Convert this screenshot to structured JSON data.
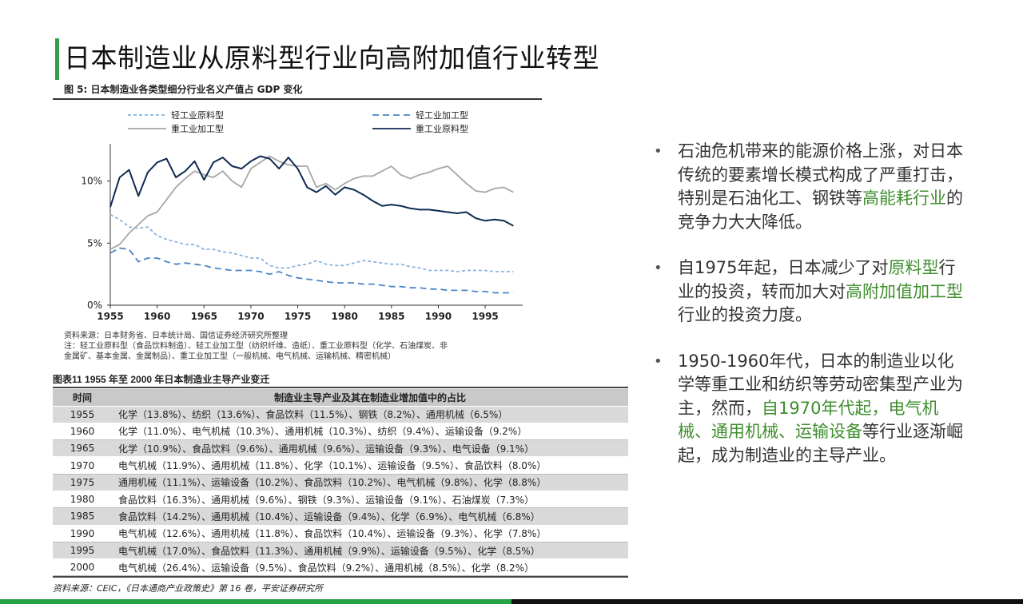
{
  "slide": {
    "title": "日本制造业从原料型行业向高附加值行业转型"
  },
  "figure": {
    "caption": "图 5:  日本制造业各类型细分行业名义产值占 GDP 变化",
    "notes": [
      "资料来源：日本财务省、日本统计局、国信证券经济研究所整理",
      "注：轻工业原料型（食品饮料制造）、轻工业加工型（纺织纤维、造纸）、重工业原料型（化学、石油煤炭、非",
      "金属矿、基本金属、金属制品）、重工业加工型（一般机械、电气机械、运输机械、精密机械）"
    ]
  },
  "chart_data": {
    "type": "line",
    "x": [
      1955,
      1956,
      1957,
      1958,
      1959,
      1960,
      1961,
      1962,
      1963,
      1964,
      1965,
      1966,
      1967,
      1968,
      1969,
      1970,
      1971,
      1972,
      1973,
      1974,
      1975,
      1976,
      1977,
      1978,
      1979,
      1980,
      1981,
      1982,
      1983,
      1984,
      1985,
      1986,
      1987,
      1988,
      1989,
      1990,
      1991,
      1992,
      1993,
      1994,
      1995,
      1996,
      1997,
      1998
    ],
    "xticks": [
      1955,
      1960,
      1965,
      1970,
      1975,
      1980,
      1985,
      1990,
      1995
    ],
    "yticks": [
      "0%",
      "5%",
      "10%"
    ],
    "ylim": [
      0,
      13
    ],
    "series": [
      {
        "name": "轻工业原料型",
        "color": "#8ab4dd",
        "dash": "4,3",
        "values": [
          7.3,
          6.9,
          6.3,
          6.2,
          6.3,
          5.6,
          5.3,
          5.1,
          4.9,
          4.9,
          4.5,
          4.5,
          4.3,
          4.2,
          4.0,
          3.8,
          3.8,
          3.2,
          3.0,
          3.0,
          3.2,
          3.3,
          3.6,
          3.3,
          3.2,
          3.2,
          3.4,
          3.6,
          3.5,
          3.4,
          3.3,
          3.3,
          3.1,
          3.0,
          2.8,
          2.8,
          2.8,
          2.7,
          2.8,
          2.8,
          2.8,
          2.7,
          2.7,
          2.7
        ]
      },
      {
        "name": "轻工业加工型",
        "color": "#4a86c5",
        "dash": "8,5",
        "values": [
          4.2,
          4.6,
          4.5,
          3.5,
          3.8,
          3.8,
          3.5,
          3.3,
          3.4,
          3.3,
          3.2,
          3.0,
          2.9,
          2.8,
          2.8,
          2.8,
          2.7,
          2.5,
          2.7,
          2.4,
          2.2,
          2.1,
          2.0,
          1.9,
          1.8,
          1.8,
          1.8,
          1.7,
          1.7,
          1.6,
          1.5,
          1.5,
          1.4,
          1.4,
          1.3,
          1.3,
          1.2,
          1.2,
          1.2,
          1.1,
          1.1,
          1.0,
          1.0,
          1.0
        ]
      },
      {
        "name": "重工业加工型",
        "color": "#a6a6a6",
        "dash": "",
        "values": [
          4.5,
          4.9,
          5.8,
          6.5,
          7.2,
          7.5,
          8.5,
          9.5,
          10.2,
          10.8,
          10.5,
          10.3,
          10.8,
          10.0,
          9.5,
          11.0,
          11.5,
          12.0,
          11.6,
          11.3,
          11.2,
          11.2,
          9.5,
          9.8,
          9.3,
          9.8,
          10.2,
          10.4,
          10.4,
          10.8,
          11.2,
          10.5,
          10.2,
          10.5,
          10.7,
          11.0,
          11.2,
          10.5,
          9.8,
          9.2,
          9.1,
          9.4,
          9.5,
          9.1
        ]
      },
      {
        "name": "重工业原料型",
        "color": "#0f2a52",
        "dash": "",
        "values": [
          7.9,
          10.3,
          10.9,
          8.8,
          10.7,
          11.5,
          11.8,
          10.3,
          10.8,
          11.6,
          10.1,
          11.5,
          11.9,
          11.2,
          11.0,
          11.6,
          12.0,
          11.8,
          11.0,
          11.9,
          11.0,
          9.5,
          9.1,
          9.6,
          8.9,
          9.5,
          9.3,
          8.9,
          8.4,
          8.0,
          8.1,
          8.0,
          7.8,
          7.7,
          7.7,
          7.6,
          7.5,
          7.4,
          7.5,
          7.0,
          6.8,
          6.9,
          6.8,
          6.4
        ]
      }
    ]
  },
  "table": {
    "caption": "图表11    1955 年至 2000 年日本制造业主导产业变迁",
    "headers": [
      "时间",
      "制造业主导产业及其在制造业增加值中的占比"
    ],
    "rows": [
      {
        "year": "1955",
        "desc": "化学（13.8%）、纺织（13.6%）、食品饮料（11.5%）、钢铁（8.2%）、通用机械（6.5%）"
      },
      {
        "year": "1960",
        "desc": "化学（11.0%）、电气机械（10.3%）、通用机械（10.3%）、纺织（9.4%）、运输设备（9.2%）"
      },
      {
        "year": "1965",
        "desc": "化学（10.9%）、食品饮料（9.6%）、通用机械（9.6%）、运输设备（9.3%）、电气设备（9.1%）"
      },
      {
        "year": "1970",
        "desc": "电气机械（11.9%）、通用机械（11.8%）、化学（10.1%）、运输设备（9.5%）、食品饮料（8.0%）"
      },
      {
        "year": "1975",
        "desc": "通用机械（11.1%）、运输设备（10.2%）、食品饮料（10.2%）、电气机械（9.8%）、化学（8.8%）"
      },
      {
        "year": "1980",
        "desc": "食品饮料（16.3%）、通用机械（9.6%）、钢铁（9.3%）、运输设备（9.1%）、石油煤炭（7.3%）"
      },
      {
        "year": "1985",
        "desc": "食品饮料（14.2%）、通用机械（10.4%）、运输设备（9.4%）、化学（6.9%）、电气机械（6.8%）"
      },
      {
        "year": "1990",
        "desc": "电气机械（12.6%）、通用机械（11.8%）、食品饮料（10.4%）、运输设备（9.3%）、化学（7.8%）"
      },
      {
        "year": "1995",
        "desc": "电气机械（17.0%）、食品饮料（11.3%）、通用机械（9.9%）、运输设备（9.5%）、化学（8.5%）"
      },
      {
        "year": "2000",
        "desc": "电气机械（26.4%）、运输设备（9.5%）、食品饮料（9.2%）、通用机械（8.5%）、化学（8.2%）"
      }
    ],
    "source": "资料来源：CEIC，《日本通商产业政策史》第 16 卷，平安证券研究所"
  },
  "bullets": [
    {
      "parts": [
        {
          "text": "石油危机带来的能源价格上涨，对日本传统的要素增长模式构成了严重打击，特别是石油化工、钢铁等",
          "hl": false
        },
        {
          "text": "高能耗行业",
          "hl": true
        },
        {
          "text": "的竞争力大大降低。",
          "hl": false
        }
      ]
    },
    {
      "parts": [
        {
          "text": "自1975年起，日本减少了对",
          "hl": false
        },
        {
          "text": "原料型",
          "hl": true
        },
        {
          "text": "行业的投资，转而加大对",
          "hl": false
        },
        {
          "text": "高附加值加工型",
          "hl": true
        },
        {
          "text": "行业的投资力度。",
          "hl": false
        }
      ]
    },
    {
      "parts": [
        {
          "text": "1950-1960年代，日本的制造业以化学等重工业和纺织等劳动密集型产业为主，然而，",
          "hl": false
        },
        {
          "text": "自1970年代起，电气机械、通用机械、运输设备",
          "hl": true
        },
        {
          "text": "等行业逐渐崛起，成为制造业的主导产业。",
          "hl": false
        }
      ]
    }
  ],
  "colors": {
    "accent_green": "#2f9e44",
    "highlight_green": "#3f8e2e",
    "footer_green": "#25a244",
    "footer_black": "#111111",
    "table_header_bg": "#c9c9c9",
    "table_row_bg": "#d9d9d9"
  }
}
